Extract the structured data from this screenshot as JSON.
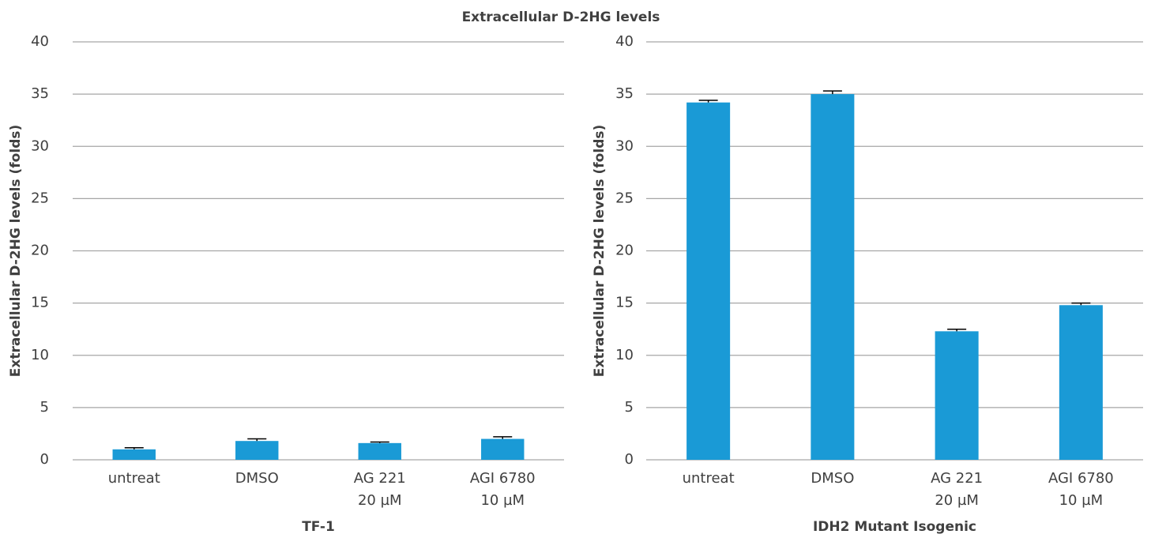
{
  "title": "Extracellular D-2HG levels",
  "chart_data": [
    {
      "type": "bar",
      "x_label": "TF-1",
      "y_label": "Extracellular D-2HG levels (folds)",
      "categories": [
        [
          "untreat"
        ],
        [
          "DMSO"
        ],
        [
          "AG 221",
          "20 µM"
        ],
        [
          "AGI 6780",
          "10 µM"
        ]
      ],
      "values": [
        1.0,
        1.8,
        1.6,
        2.0
      ],
      "errors": [
        0.15,
        0.2,
        0.1,
        0.2
      ],
      "color": "#1a9ad6",
      "ylim": [
        0,
        40
      ],
      "yticks": [
        0,
        5,
        10,
        15,
        20,
        25,
        30,
        35,
        40
      ],
      "grid": true
    },
    {
      "type": "bar",
      "x_label": "IDH2 Mutant Isogenic",
      "y_label": "Extracellular D-2HG levels (folds)",
      "categories": [
        [
          "untreat"
        ],
        [
          "DMSO"
        ],
        [
          "AG 221",
          "20 µM"
        ],
        [
          "AGI 6780",
          "10 µM"
        ]
      ],
      "values": [
        34.2,
        35.0,
        12.3,
        14.8
      ],
      "errors": [
        0.2,
        0.3,
        0.2,
        0.2
      ],
      "color": "#1a9ad6",
      "ylim": [
        0,
        40
      ],
      "yticks": [
        0,
        5,
        10,
        15,
        20,
        25,
        30,
        35,
        40
      ],
      "grid": true
    }
  ]
}
